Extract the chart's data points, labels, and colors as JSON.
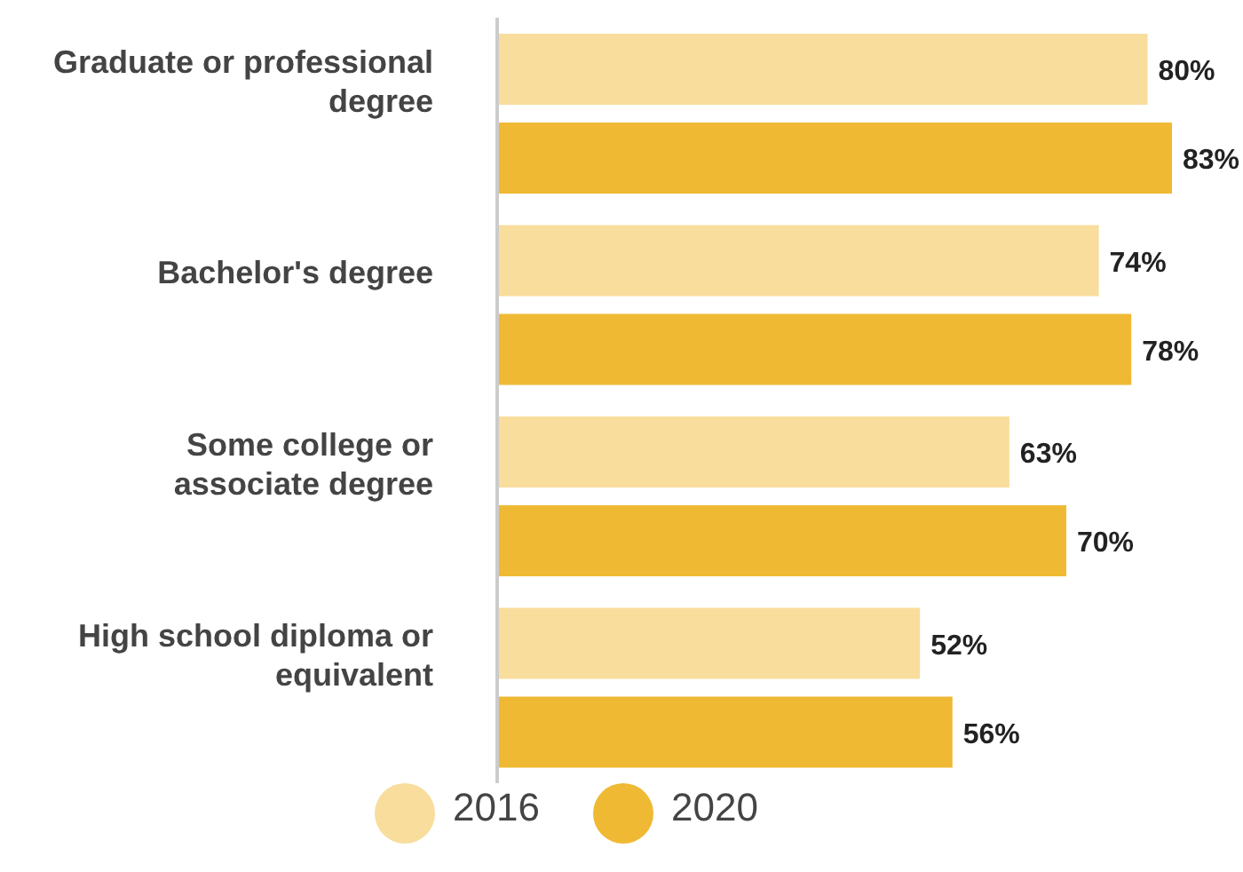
{
  "chart_data": {
    "type": "bar",
    "orientation": "horizontal",
    "categories": [
      "Graduate or professional degree",
      "Bachelor's degree",
      "Some college or associate degree",
      "High school diploma or equivalent"
    ],
    "series": [
      {
        "name": "2016",
        "color": "#f8dd9d",
        "values": [
          80,
          74,
          63,
          52
        ],
        "value_labels": [
          "80%",
          "74%",
          "63%",
          "52%"
        ]
      },
      {
        "name": "2020",
        "color": "#f0b934",
        "values": [
          83,
          78,
          70,
          56
        ],
        "value_labels": [
          "83%",
          "78%",
          "70%",
          "56%"
        ]
      }
    ],
    "legend": "bottom"
  }
}
